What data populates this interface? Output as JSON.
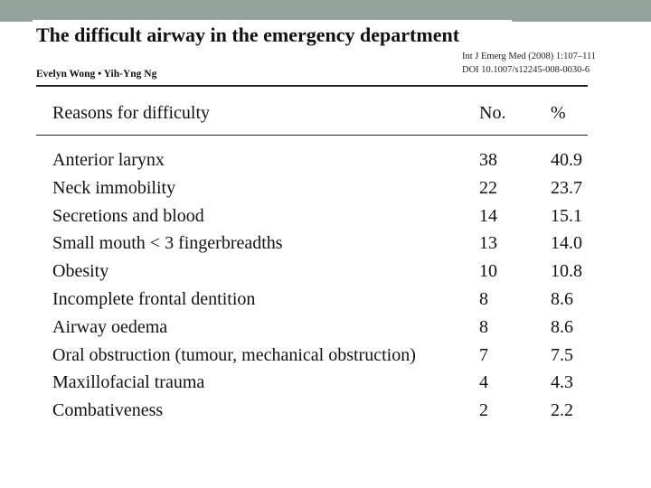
{
  "header": {
    "title": "The difficult airway in the emergency department",
    "authors": "Evelyn Wong • Yih-Yng Ng",
    "journal_ref": "Int J Emerg Med (2008) 1:107–111",
    "doi": "DOI 10.1007/s12245-008-0030-6"
  },
  "table": {
    "columns": [
      "Reasons for difficulty",
      "No.",
      "%"
    ],
    "rows": [
      {
        "reason": "Anterior larynx",
        "no": "38",
        "pct": "40.9"
      },
      {
        "reason": "Neck immobility",
        "no": "22",
        "pct": "23.7"
      },
      {
        "reason": "Secretions and blood",
        "no": "14",
        "pct": "15.1"
      },
      {
        "reason": "Small mouth < 3 fingerbreadths",
        "no": "13",
        "pct": "14.0"
      },
      {
        "reason": "Obesity",
        "no": "10",
        "pct": "10.8"
      },
      {
        "reason": "Incomplete frontal dentition",
        "no": "8",
        "pct": "8.6"
      },
      {
        "reason": "Airway oedema",
        "no": "8",
        "pct": "8.6"
      },
      {
        "reason": "Oral obstruction (tumour, mechanical obstruction)",
        "no": "7",
        "pct": "7.5"
      },
      {
        "reason": "Maxillofacial trauma",
        "no": "4",
        "pct": "4.3"
      },
      {
        "reason": "Combativeness",
        "no": "2",
        "pct": "2.2"
      }
    ]
  }
}
